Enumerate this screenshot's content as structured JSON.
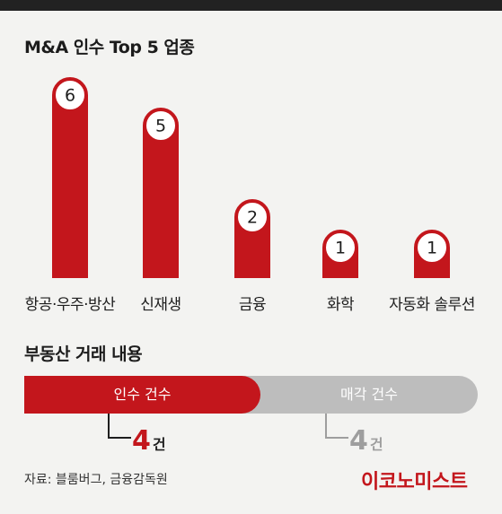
{
  "title": "M&A 인수 Top 5 업종",
  "chart_data": {
    "type": "bar",
    "title": "M&A 인수 Top 5 업종",
    "categories": [
      "항공·우주·방산",
      "신재생",
      "금융",
      "화학",
      "자동화 솔루션"
    ],
    "values": [
      6,
      5,
      2,
      1,
      1
    ],
    "ylim": [
      0,
      6
    ],
    "grid": false,
    "legend": "none",
    "colors": {
      "bar": "#c3161c",
      "marker_fill": "#ffffff",
      "text": "#1e1e1e"
    }
  },
  "real_estate": {
    "title": "부동산 거래 내용",
    "acquisition_label": "인수 건수",
    "sale_label": "매각 건수",
    "acquisition_count": "4",
    "sale_count": "4",
    "unit": "건",
    "colors": {
      "acquisition": "#c3161c",
      "sale": "#bdbdbd",
      "sale_text": "#9e9e9e"
    }
  },
  "source": "자료: 블룸버그, 금융감독원",
  "logo_text": "이코노미스트"
}
